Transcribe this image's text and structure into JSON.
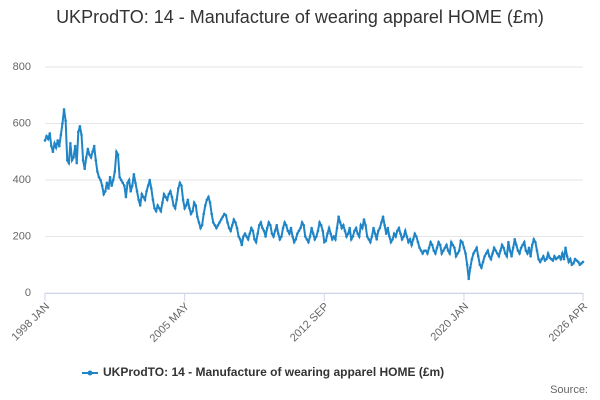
{
  "chart_data": {
    "type": "line",
    "title": "UKProdTO: 14 - Manufacture of wearing apparel HOME (£m)",
    "source": "Source:",
    "categories": [
      "1998 JAN",
      null,
      null,
      null,
      null,
      null,
      null,
      null,
      null,
      null,
      null,
      null,
      null,
      null,
      null,
      null,
      null,
      null,
      null,
      null,
      null,
      null,
      null,
      null,
      null,
      null,
      null,
      null,
      null,
      null,
      null,
      null,
      null,
      null,
      null,
      null,
      null,
      null,
      null,
      null,
      null,
      null,
      null,
      null,
      null,
      null,
      null,
      null,
      null,
      null,
      null,
      null,
      null,
      null,
      null,
      null,
      null,
      null,
      null,
      null,
      null,
      null,
      null,
      null,
      null,
      null,
      null,
      null,
      null,
      null,
      null,
      null,
      null,
      null,
      null,
      null,
      null,
      null,
      null,
      null,
      null,
      null,
      null,
      null,
      null,
      null,
      null,
      null,
      "2005 MAY",
      null,
      null,
      null,
      null,
      null,
      null,
      null,
      null,
      null,
      null,
      null,
      null,
      null,
      null,
      null,
      null,
      null,
      null,
      null,
      null,
      null,
      null,
      null,
      null,
      null,
      null,
      null,
      null,
      null,
      null,
      null,
      null,
      null,
      null,
      null,
      null,
      null,
      null,
      null,
      null,
      null,
      null,
      null,
      null,
      null,
      null,
      null,
      null,
      null,
      null,
      null,
      null,
      null,
      null,
      null,
      null,
      null,
      null,
      null,
      null,
      null,
      null,
      null,
      null,
      null,
      null,
      null,
      null,
      null,
      null,
      null,
      null,
      null,
      null,
      null,
      null,
      null,
      null,
      null,
      null,
      null,
      null,
      null,
      null,
      null,
      null,
      null,
      "2012 SEP",
      null,
      null,
      null,
      null,
      null,
      null,
      null,
      null,
      null,
      null,
      null,
      null,
      null,
      null,
      null,
      null,
      null,
      null,
      null,
      null,
      null,
      null,
      null,
      null,
      null,
      null,
      null,
      null,
      null,
      null,
      null,
      null,
      null,
      null,
      null,
      null,
      null,
      null,
      null,
      null,
      null,
      null,
      null,
      null,
      null,
      null,
      null,
      null,
      null,
      null,
      null,
      null,
      null,
      null,
      null,
      null,
      null,
      null,
      null,
      null,
      null,
      null,
      null,
      null,
      null,
      null,
      null,
      null,
      null,
      null,
      null,
      null,
      null,
      null,
      null,
      null,
      null,
      null,
      null,
      null,
      null,
      null,
      null,
      null,
      null,
      null,
      null,
      "2020 JAN",
      null,
      null,
      null,
      null,
      null,
      null,
      null,
      null,
      null,
      null,
      null,
      null,
      null,
      null,
      null,
      null,
      null,
      null,
      null,
      null,
      null,
      null,
      null,
      null,
      null,
      null,
      null,
      null,
      null,
      null,
      null,
      null,
      null,
      null,
      null,
      null,
      null,
      null,
      null,
      null,
      null,
      null,
      null,
      null,
      null,
      null,
      null,
      null,
      null,
      null,
      null,
      null,
      null,
      null,
      null,
      null,
      null,
      null,
      null,
      null,
      null,
      null,
      null,
      null,
      null,
      null,
      null,
      null,
      null,
      null,
      null,
      null,
      null,
      null,
      "2026 APR"
    ],
    "series": [
      {
        "name": "UKProdTO: 14 - Manufacture of wearing apparel HOME (£m)",
        "color": "#1f85c6",
        "values": [
          540,
          555,
          545,
          565,
          520,
          500,
          530,
          515,
          540,
          520,
          560,
          600,
          650,
          610,
          470,
          460,
          530,
          470,
          480,
          520,
          460,
          570,
          590,
          560,
          470,
          440,
          480,
          510,
          490,
          480,
          500,
          520,
          470,
          430,
          410,
          400,
          380,
          350,
          360,
          390,
          370,
          410,
          380,
          400,
          430,
          500,
          490,
          410,
          400,
          390,
          380,
          340,
          390,
          400,
          360,
          380,
          420,
          390,
          360,
          330,
          310,
          350,
          340,
          330,
          360,
          380,
          400,
          370,
          330,
          300,
          290,
          310,
          300,
          290,
          320,
          350,
          340,
          330,
          350,
          360,
          340,
          310,
          300,
          330,
          370,
          390,
          380,
          330,
          300,
          310,
          330,
          300,
          280,
          290,
          320,
          310,
          270,
          250,
          230,
          240,
          280,
          310,
          330,
          340,
          320,
          280,
          250,
          240,
          230,
          240,
          250,
          260,
          270,
          280,
          275,
          250,
          230,
          220,
          240,
          260,
          250,
          230,
          200,
          190,
          170,
          200,
          210,
          200,
          190,
          210,
          230,
          220,
          190,
          180,
          210,
          240,
          250,
          230,
          220,
          200,
          230,
          250,
          240,
          210,
          200,
          220,
          240,
          210,
          190,
          200,
          230,
          250,
          240,
          220,
          210,
          230,
          200,
          180,
          190,
          210,
          220,
          230,
          250,
          240,
          200,
          190,
          180,
          200,
          230,
          210,
          190,
          200,
          220,
          250,
          240,
          220,
          180,
          185,
          210,
          230,
          210,
          190,
          200,
          190,
          230,
          270,
          250,
          230,
          240,
          220,
          200,
          210,
          230,
          190,
          200,
          220,
          230,
          210,
          200,
          240,
          230,
          260,
          240,
          200,
          190,
          180,
          200,
          230,
          210,
          190,
          220,
          230,
          250,
          270,
          240,
          210,
          230,
          200,
          180,
          190,
          210,
          200,
          220,
          230,
          210,
          190,
          200,
          220,
          200,
          180,
          190,
          170,
          190,
          210,
          200,
          180,
          160,
          150,
          140,
          150,
          150,
          140,
          160,
          180,
          170,
          150,
          140,
          160,
          180,
          170,
          140,
          150,
          160,
          170,
          150,
          140,
          180,
          170,
          160,
          130,
          140,
          150,
          185,
          180,
          160,
          140,
          100,
          50,
          90,
          120,
          140,
          150,
          160,
          130,
          100,
          90,
          110,
          130,
          140,
          150,
          130,
          120,
          140,
          160,
          150,
          140,
          130,
          150,
          170,
          160,
          140,
          130,
          180,
          150,
          130,
          160,
          190,
          170,
          150,
          140,
          160,
          170,
          180,
          150,
          140,
          160,
          130,
          170,
          190,
          180,
          150,
          120,
          110,
          120,
          130,
          115,
          120,
          140,
          125,
          120,
          115,
          130,
          120,
          125,
          130,
          120,
          140,
          120,
          160,
          130,
          110,
          120,
          100,
          105,
          120,
          115,
          110,
          100,
          105,
          110
        ]
      }
    ],
    "ylim": [
      0,
      800
    ],
    "yticks": [
      0,
      200,
      400,
      600,
      800
    ],
    "grid": true
  }
}
